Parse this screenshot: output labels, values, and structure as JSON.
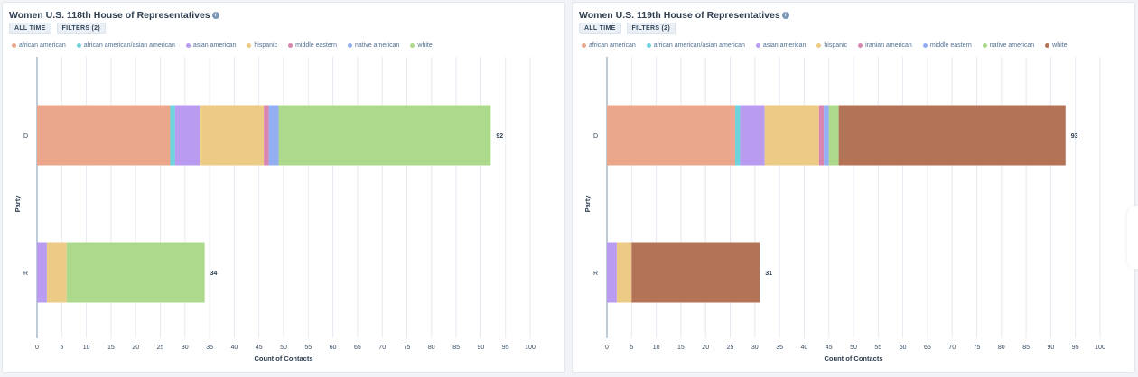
{
  "cards": [
    {
      "title": "Women U.S. 118th House of Representatives",
      "chips": [
        "ALL TIME",
        "FILTERS (2)"
      ]
    },
    {
      "title": "Women U.S. 119th House of Representatives",
      "chips": [
        "ALL TIME",
        "FILTERS (2)"
      ]
    }
  ],
  "chart_data": [
    {
      "type": "bar",
      "orientation": "horizontal",
      "stacked": true,
      "categories": [
        "D",
        "R"
      ],
      "xlabel": "Count of Contacts",
      "ylabel": "Party",
      "xlim": [
        0,
        100
      ],
      "xticks": [
        0,
        5,
        10,
        15,
        20,
        25,
        30,
        35,
        40,
        45,
        50,
        55,
        60,
        65,
        70,
        75,
        80,
        85,
        90,
        95,
        100
      ],
      "grid": true,
      "legend_position": "top-left",
      "totals": [
        92,
        34
      ],
      "series": [
        {
          "name": "african american",
          "color": "#eaa78b",
          "values": [
            27,
            0
          ]
        },
        {
          "name": "african american/asian american",
          "color": "#6fd3de",
          "values": [
            1,
            0
          ]
        },
        {
          "name": "asian american",
          "color": "#b99cf0",
          "values": [
            5,
            2
          ]
        },
        {
          "name": "hispanic",
          "color": "#ebcb86",
          "values": [
            13,
            4
          ]
        },
        {
          "name": "middle eastern",
          "color": "#d886b0",
          "values": [
            1,
            0
          ]
        },
        {
          "name": "native american",
          "color": "#93aef2",
          "values": [
            2,
            0
          ]
        },
        {
          "name": "white",
          "color": "#acd98b",
          "values": [
            43,
            28
          ]
        }
      ]
    },
    {
      "type": "bar",
      "orientation": "horizontal",
      "stacked": true,
      "categories": [
        "D",
        "R"
      ],
      "xlabel": "Count of Contacts",
      "ylabel": "Party",
      "xlim": [
        0,
        100
      ],
      "xticks": [
        0,
        5,
        10,
        15,
        20,
        25,
        30,
        35,
        40,
        45,
        50,
        55,
        60,
        65,
        70,
        75,
        80,
        85,
        90,
        95,
        100
      ],
      "grid": true,
      "legend_position": "top-left",
      "totals": [
        93,
        31
      ],
      "series": [
        {
          "name": "african american",
          "color": "#eaa78b",
          "values": [
            26,
            0
          ]
        },
        {
          "name": "african american/asian american",
          "color": "#6fd3de",
          "values": [
            1,
            0
          ]
        },
        {
          "name": "asian american",
          "color": "#b99cf0",
          "values": [
            5,
            2
          ]
        },
        {
          "name": "hispanic",
          "color": "#ebcb86",
          "values": [
            11,
            3
          ]
        },
        {
          "name": "iranian american",
          "color": "#d886b0",
          "values": [
            1,
            0
          ]
        },
        {
          "name": "middle eastern",
          "color": "#93aef2",
          "values": [
            1,
            0
          ]
        },
        {
          "name": "native american",
          "color": "#acd98b",
          "values": [
            2,
            0
          ]
        },
        {
          "name": "white",
          "color": "#b37357",
          "values": [
            46,
            26
          ]
        }
      ]
    }
  ]
}
